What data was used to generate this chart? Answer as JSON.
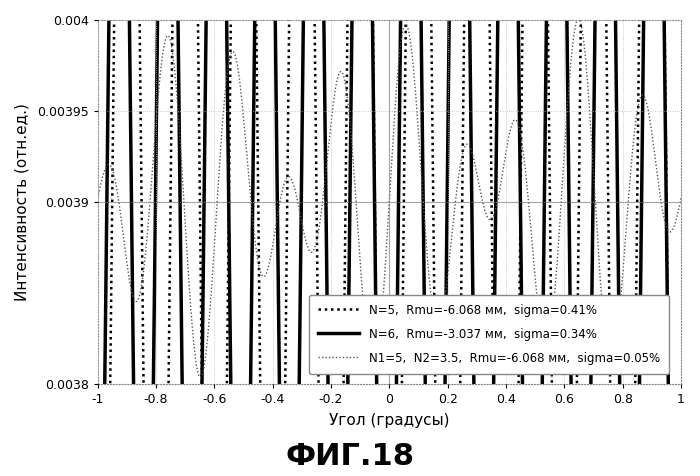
{
  "title": "",
  "xlabel": "Угол (градусы)",
  "ylabel": "Интенсивность (отн.ед.)",
  "fig_title": "ФИГ.18",
  "xlim": [
    -1,
    1
  ],
  "ylim": [
    0.0038,
    0.004
  ],
  "yticks": [
    0.0038,
    0.0039,
    0.00395,
    0.004
  ],
  "ytick_labels": [
    "0.0038",
    "0.0039",
    "0.00395",
    "0.004"
  ],
  "xticks": [
    -1,
    -0.8,
    -0.6,
    -0.4,
    -0.2,
    0,
    0.2,
    0.4,
    0.6,
    0.8,
    1
  ],
  "legend": [
    "N=5,  Rmu=-6.068 мм,  sigma=0.41%",
    "N=6,  Rmu=-3.037 мм,  sigma=0.34%",
    "N1=5,  N2=3.5,  Rmu=-6.068 мм,  sigma=0.05%"
  ],
  "background": "#ffffff",
  "N5_mean": 0.003905,
  "N5_amplitude": 0.00048,
  "N5_freq": 5.0,
  "N5_phase": -1.57,
  "N6_mean": 0.003908,
  "N6_amplitude": 0.00038,
  "N6_freq": 6.0,
  "N6_phase": -1.2,
  "N1N2_mean": 0.003902,
  "N1N2_amplitude": 5.5e-05,
  "N1N2_freq1": 5.0,
  "N1N2_freq2": 3.5,
  "N1N2_phase": 0.0
}
